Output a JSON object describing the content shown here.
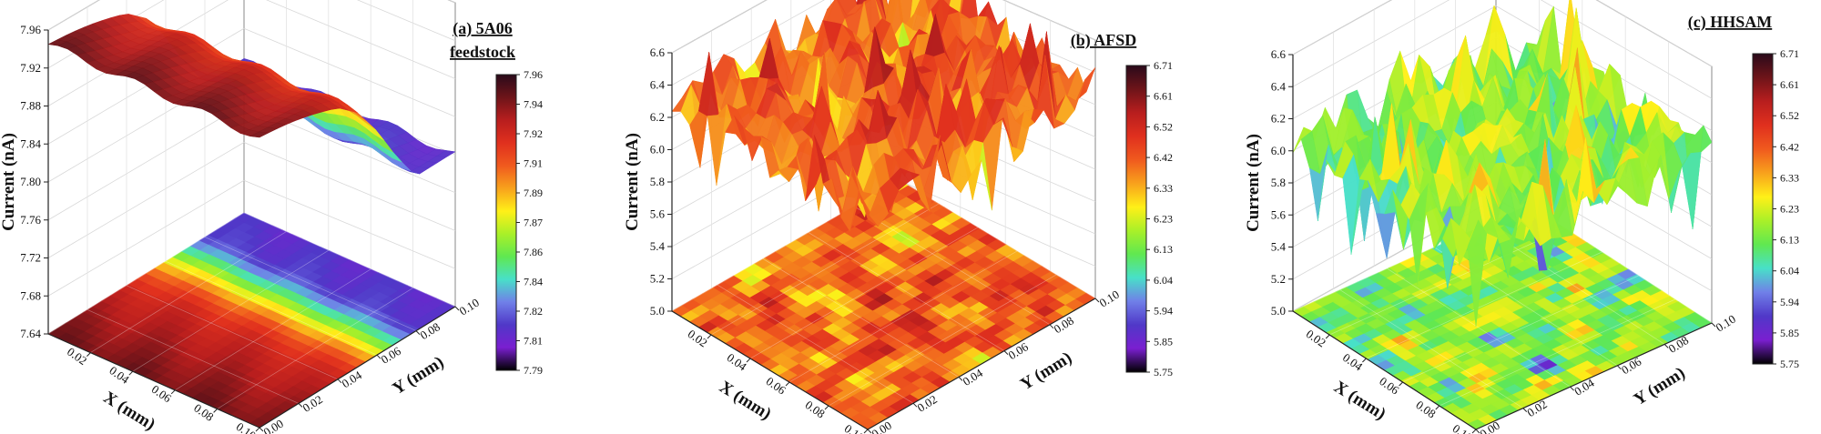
{
  "colormap": [
    "#2a0a1a",
    "#6e1419",
    "#b81e1e",
    "#e0301e",
    "#f05a1e",
    "#f8a21c",
    "#fff018",
    "#aaf028",
    "#60e850",
    "#48e0c8",
    "#7080e8",
    "#5038c8",
    "#7a1fd0",
    "#000000"
  ],
  "chart_data": [
    {
      "type": "surface3d",
      "title_lines": [
        "(a) 5A06",
        "feedstock"
      ],
      "xlabel": "X (mm)",
      "ylabel": "Y (mm)",
      "zlabel": "Current (nA)",
      "x_ticks": [
        "0.02",
        "0.04",
        "0.06",
        "0.08",
        "0.10"
      ],
      "y_ticks": [
        "0.00",
        "0.02",
        "0.04",
        "0.06",
        "0.08",
        "0.10"
      ],
      "z_ticks": [
        "7.64",
        "7.68",
        "7.72",
        "7.76",
        "7.80",
        "7.84",
        "7.88",
        "7.92",
        "7.96"
      ],
      "zlim": [
        7.64,
        7.96
      ],
      "colorbar_ticks": [
        "7.96",
        "7.94",
        "7.92",
        "7.91",
        "7.89",
        "7.87",
        "7.86",
        "7.84",
        "7.82",
        "7.81",
        "7.79"
      ],
      "colorbar_range": [
        7.79,
        7.96
      ],
      "grid": true,
      "description_of_data": "Smooth surface: current about 7.93-7.95 nA at low Y, falling steeply to about 7.79-7.81 nA near Y = 0.07-0.10 mm; contour projection on floor.",
      "surface_profile_y": [
        0.0,
        0.02,
        0.04,
        0.05,
        0.06,
        0.07,
        0.08,
        0.1
      ],
      "surface_profile_z": [
        7.945,
        7.935,
        7.925,
        7.91,
        7.88,
        7.84,
        7.805,
        7.8
      ]
    },
    {
      "type": "surface3d",
      "title_lines": [
        "(b) AFSD"
      ],
      "xlabel": "X (mm)",
      "ylabel": "Y (mm)",
      "zlabel": "Current (nA)",
      "x_ticks": [
        "0.02",
        "0.04",
        "0.06",
        "0.08",
        "0.10"
      ],
      "y_ticks": [
        "0.00",
        "0.02",
        "0.04",
        "0.06",
        "0.08",
        "0.10"
      ],
      "z_ticks": [
        "5.0",
        "5.2",
        "5.4",
        "5.6",
        "5.8",
        "6.0",
        "6.2",
        "6.4",
        "6.6"
      ],
      "zlim": [
        5.0,
        6.7
      ],
      "colorbar_ticks": [
        "6.71",
        "6.61",
        "6.52",
        "6.42",
        "6.33",
        "6.23",
        "6.13",
        "6.04",
        "5.94",
        "5.85",
        "5.75"
      ],
      "colorbar_range": [
        5.75,
        6.71
      ],
      "grid": true,
      "description_of_data": "Rough surface with current mostly 6.2-6.6 nA, spikes down to about 5.8-6.0 nA; patchy contour projection on floor.",
      "surface_mean": 6.38,
      "surface_spread": 0.28
    },
    {
      "type": "surface3d",
      "title_lines": [
        "(c) HHSAM"
      ],
      "xlabel": "X (mm)",
      "ylabel": "Y (mm)",
      "zlabel": "Current (nA)",
      "x_ticks": [
        "0.02",
        "0.04",
        "0.06",
        "0.08",
        "0.10"
      ],
      "y_ticks": [
        "0.00",
        "0.02",
        "0.04",
        "0.06",
        "0.08",
        "0.10"
      ],
      "z_ticks": [
        "5.0",
        "5.2",
        "5.4",
        "5.6",
        "5.8",
        "6.0",
        "6.2",
        "6.4",
        "6.6"
      ],
      "zlim": [
        5.0,
        6.7
      ],
      "colorbar_ticks": [
        "6.71",
        "6.61",
        "6.52",
        "6.42",
        "6.33",
        "6.23",
        "6.13",
        "6.04",
        "5.94",
        "5.85",
        "5.75"
      ],
      "colorbar_range": [
        5.75,
        6.71
      ],
      "grid": true,
      "description_of_data": "Rough surface with current mostly 6.0-6.4 nA, peaks up to about 6.7 nA and dips to about 5.5 nA; floor projection mostly green with scattered red and blue patches.",
      "surface_mean": 6.12,
      "surface_spread": 0.32
    }
  ]
}
